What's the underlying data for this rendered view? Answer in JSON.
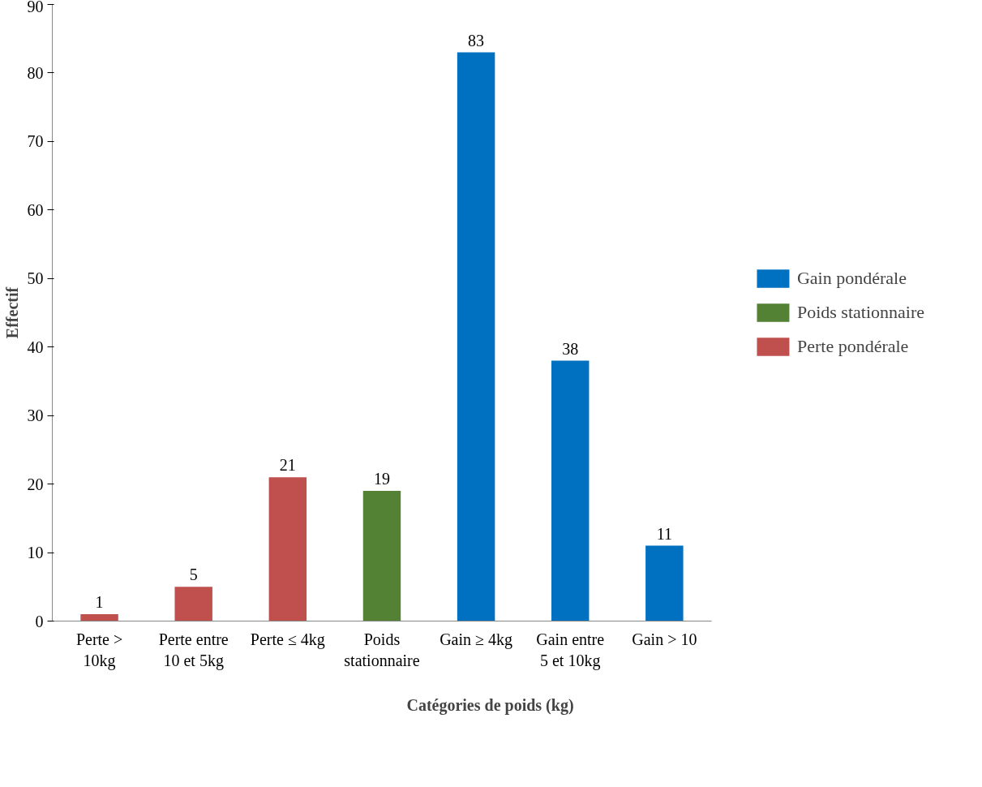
{
  "chart_data": {
    "type": "bar",
    "xlabel": "Catégories de poids (kg)",
    "ylabel": "Effectif",
    "categories": [
      "Perte >\n10kg",
      "Perte entre\n10 et 5kg",
      "Perte ≤ 4kg",
      "Poids\nstationnaire",
      "Gain ≥ 4kg",
      "Gain entre\n5 et 10kg",
      "Gain > 10"
    ],
    "series": [
      {
        "name": "Gain pondérale",
        "color": "#0070c0",
        "values": [
          null,
          null,
          null,
          null,
          83,
          38,
          11
        ]
      },
      {
        "name": "Poids stationnaire",
        "color": "#548235",
        "values": [
          null,
          null,
          null,
          19,
          null,
          null,
          null
        ]
      },
      {
        "name": "Perte pondérale",
        "color": "#c0504d",
        "values": [
          1,
          5,
          21,
          null,
          null,
          null,
          null
        ]
      }
    ],
    "ylim": [
      0,
      90
    ],
    "yticks": [
      0,
      10,
      20,
      30,
      40,
      50,
      60,
      70,
      80,
      90
    ],
    "grid": false,
    "legend": "right",
    "data_labels": true
  }
}
